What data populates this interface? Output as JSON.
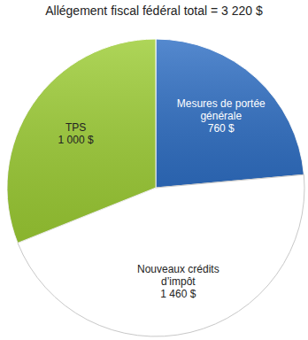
{
  "chart_data": {
    "type": "pie",
    "title": "Allégement fiscal fédéral total = 3 220 $",
    "categories": [
      "Mesures de portée générale",
      "Nouveaux crédits d’impôt",
      "TPS"
    ],
    "values": [
      760,
      1460,
      1000
    ],
    "value_labels": [
      "760 $",
      "1 460 $",
      "1 000 $"
    ],
    "colors": [
      "#2f6fc4",
      "#ffffff",
      "#9ccc34"
    ],
    "data_labels": true
  }
}
